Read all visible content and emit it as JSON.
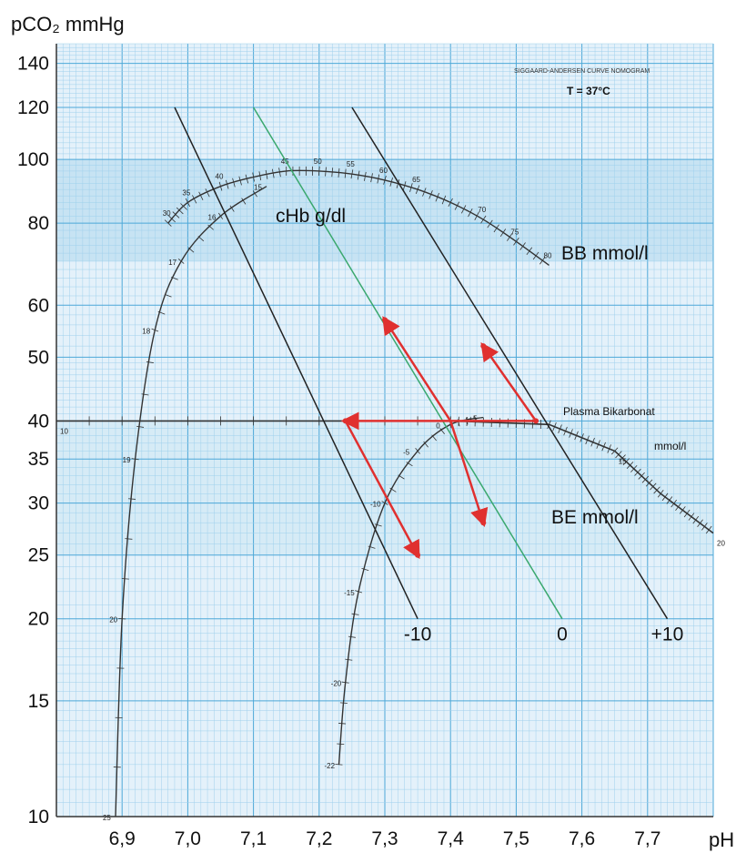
{
  "chart_data": {
    "type": "line",
    "title": "SIGGAARD-ANDERSEN CURVE NOMOGRAM",
    "subtitle": "T = 37°C",
    "xlabel": "pH",
    "ylabel": "pCO₂ mmHg",
    "yscale": "log",
    "xlim": [
      6.8,
      7.8
    ],
    "ylim": [
      10,
      150
    ],
    "grid": true,
    "x_ticks": [
      6.9,
      7.0,
      7.1,
      7.2,
      7.3,
      7.4,
      7.5,
      7.6,
      7.7
    ],
    "x_tick_labels": [
      "6,9",
      "7,0",
      "7,1",
      "7,2",
      "7,3",
      "7,4",
      "7,5",
      "7,6",
      "7,7"
    ],
    "y_ticks": [
      10,
      15,
      20,
      25,
      30,
      35,
      40,
      50,
      60,
      80,
      100,
      120,
      140
    ],
    "y_tick_labels": [
      "10",
      "15",
      "20",
      "25",
      "30",
      "35",
      "40",
      "50",
      "60",
      "80",
      "100",
      "120",
      "140"
    ],
    "labels": {
      "cHb": "cHb  g/dl",
      "bb": "BB mmol/l",
      "be": "BE  mmol/l",
      "plasma": "Plasma Bikarbonat",
      "plasma_unit": "mmol/l"
    },
    "series": [
      {
        "name": "-10",
        "x": [
          6.98,
          7.35
        ],
        "y": [
          120,
          20
        ],
        "color": "#222222"
      },
      {
        "name": "0",
        "x": [
          7.1,
          7.57
        ],
        "y": [
          120,
          20
        ],
        "color": "#3aa86e"
      },
      {
        "name": "+10",
        "x": [
          7.25,
          7.73
        ],
        "y": [
          120,
          20
        ],
        "color": "#222222"
      }
    ],
    "curves": {
      "buffer_base": {
        "x": [
          6.97,
          7.0,
          7.05,
          7.1,
          7.15,
          7.2,
          7.25,
          7.3,
          7.35,
          7.4,
          7.45,
          7.5,
          7.55
        ],
        "y": [
          80,
          86,
          91,
          94,
          96,
          96,
          95,
          93,
          90,
          86,
          81,
          75,
          69
        ],
        "labels": [
          "30",
          "35",
          "40",
          "45",
          "50",
          "55",
          "60",
          "65",
          "70",
          "75",
          "80"
        ]
      },
      "base_excess": {
        "x": [
          6.89,
          6.9,
          6.92,
          6.95,
          6.99,
          7.05,
          7.12
        ],
        "y": [
          10,
          20,
          35,
          55,
          70,
          82,
          91
        ],
        "labels": [
          "25",
          "20",
          "19",
          "18",
          "17",
          "16",
          "15"
        ]
      },
      "base_excess_right": {
        "x": [
          7.23,
          7.24,
          7.26,
          7.3,
          7.35,
          7.4,
          7.45
        ],
        "y": [
          12,
          16,
          22,
          30,
          36,
          39.5,
          40.5
        ],
        "labels": [
          "-22",
          "-20",
          "-15",
          "-10",
          "-5",
          "0",
          "+5"
        ]
      },
      "plasma_bicarbonate": {
        "x": [
          6.8,
          7.4,
          7.55,
          7.65,
          7.72,
          7.8
        ],
        "y": [
          40,
          40,
          39.5,
          36,
          31,
          27
        ],
        "labels": [
          "10",
          "15",
          "20"
        ]
      }
    },
    "annotations": {
      "arrows_color": "#e0302f",
      "points": [
        {
          "x": 7.24,
          "y": 40
        },
        {
          "x": 7.53,
          "y": 40
        },
        {
          "x": 7.3,
          "y": 57
        },
        {
          "x": 7.45,
          "y": 28
        },
        {
          "x": 7.35,
          "y": 25
        },
        {
          "x": 7.45,
          "y": 52
        }
      ]
    }
  }
}
